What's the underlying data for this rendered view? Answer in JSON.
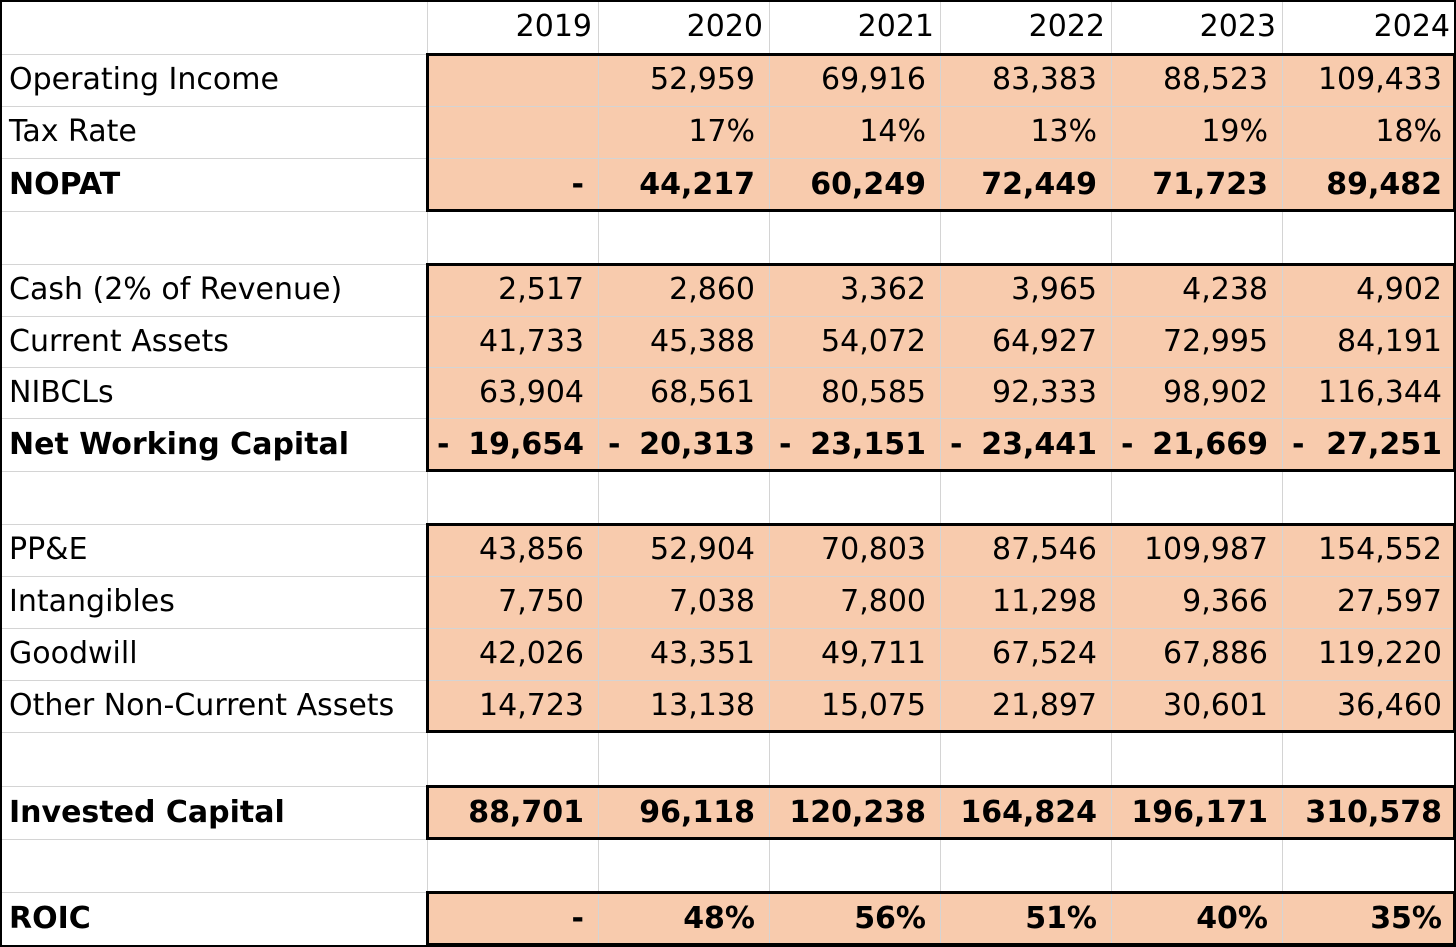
{
  "years": [
    "2019",
    "2020",
    "2021",
    "2022",
    "2023",
    "2024"
  ],
  "rows": [
    {
      "label": "Operating Income",
      "bold": false,
      "values": [
        "",
        "52,959",
        "69,916",
        "83,383",
        "88,523",
        "109,433"
      ]
    },
    {
      "label": "Tax Rate",
      "bold": false,
      "values": [
        "",
        "17%",
        "14%",
        "13%",
        "19%",
        "18%"
      ]
    },
    {
      "label": "NOPAT",
      "bold": true,
      "values": [
        "-",
        "44,217",
        "60,249",
        "72,449",
        "71,723",
        "89,482"
      ]
    },
    {
      "label": "",
      "bold": false,
      "values": [
        "",
        "",
        "",
        "",
        "",
        ""
      ]
    },
    {
      "label": "Cash (2% of Revenue)",
      "bold": false,
      "values": [
        "2,517",
        "2,860",
        "3,362",
        "3,965",
        "4,238",
        "4,902"
      ]
    },
    {
      "label": "Current Assets",
      "bold": false,
      "values": [
        "41,733",
        "45,388",
        "54,072",
        "64,927",
        "72,995",
        "84,191"
      ]
    },
    {
      "label": "NIBCLs",
      "bold": false,
      "values": [
        "63,904",
        "68,561",
        "80,585",
        "92,333",
        "98,902",
        "116,344"
      ]
    },
    {
      "label": "Net Working Capital",
      "bold": true,
      "negative": true,
      "values": [
        "19,654",
        "20,313",
        "23,151",
        "23,441",
        "21,669",
        "27,251"
      ]
    },
    {
      "label": "",
      "bold": false,
      "values": [
        "",
        "",
        "",
        "",
        "",
        ""
      ]
    },
    {
      "label": "PP&E",
      "bold": false,
      "values": [
        "43,856",
        "52,904",
        "70,803",
        "87,546",
        "109,987",
        "154,552"
      ]
    },
    {
      "label": "Intangibles",
      "bold": false,
      "values": [
        "7,750",
        "7,038",
        "7,800",
        "11,298",
        "9,366",
        "27,597"
      ]
    },
    {
      "label": "Goodwill",
      "bold": false,
      "values": [
        "42,026",
        "43,351",
        "49,711",
        "67,524",
        "67,886",
        "119,220"
      ]
    },
    {
      "label": "Other Non-Current Assets",
      "bold": false,
      "values": [
        "14,723",
        "13,138",
        "15,075",
        "21,897",
        "30,601",
        "36,460"
      ]
    },
    {
      "label": "",
      "bold": false,
      "values": [
        "",
        "",
        "",
        "",
        "",
        ""
      ]
    },
    {
      "label": "Invested Capital",
      "bold": true,
      "values": [
        "88,701",
        "96,118",
        "120,238",
        "164,824",
        "196,171",
        "310,578"
      ]
    },
    {
      "label": "",
      "bold": false,
      "values": [
        "",
        "",
        "",
        "",
        "",
        ""
      ]
    },
    {
      "label": "ROIC",
      "bold": true,
      "values": [
        "-",
        "48%",
        "56%",
        "51%",
        "40%",
        "35%"
      ]
    }
  ],
  "negative_sign": "-",
  "colors": {
    "fill": "#f8cbad",
    "gridline": "#d4d4d4",
    "border": "#000000"
  }
}
